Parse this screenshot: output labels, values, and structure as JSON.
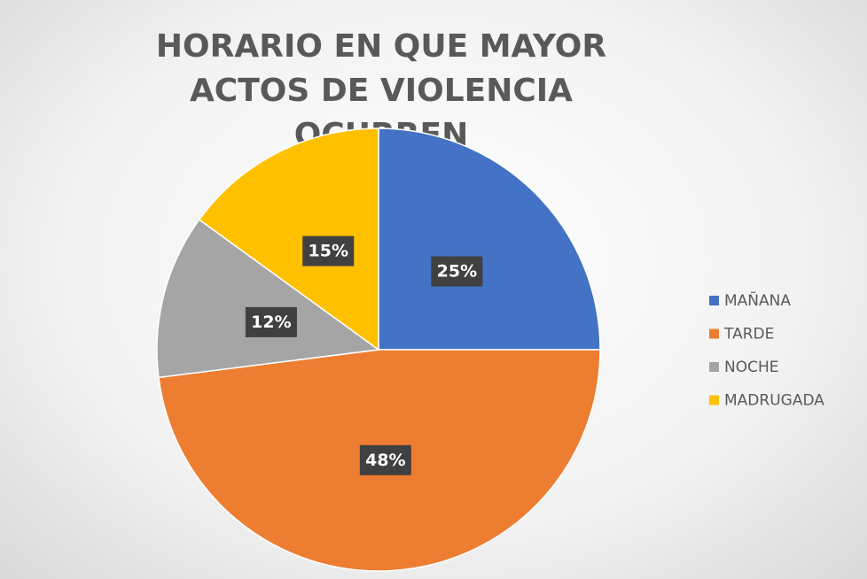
{
  "chart_data": {
    "type": "pie",
    "title": "HORARIO EN QUE MAYOR ACTOS DE VIOLENCIA OCURREN",
    "categories": [
      "MAÑANA",
      "TARDE",
      "NOCHE",
      "MADRUGADA"
    ],
    "values": [
      25,
      48,
      12,
      15
    ],
    "value_labels": [
      "25%",
      "48%",
      "12%",
      "15%"
    ],
    "colors": [
      "#4472c4",
      "#ed7d31",
      "#a5a5a5",
      "#ffc000"
    ],
    "legend": "right"
  }
}
